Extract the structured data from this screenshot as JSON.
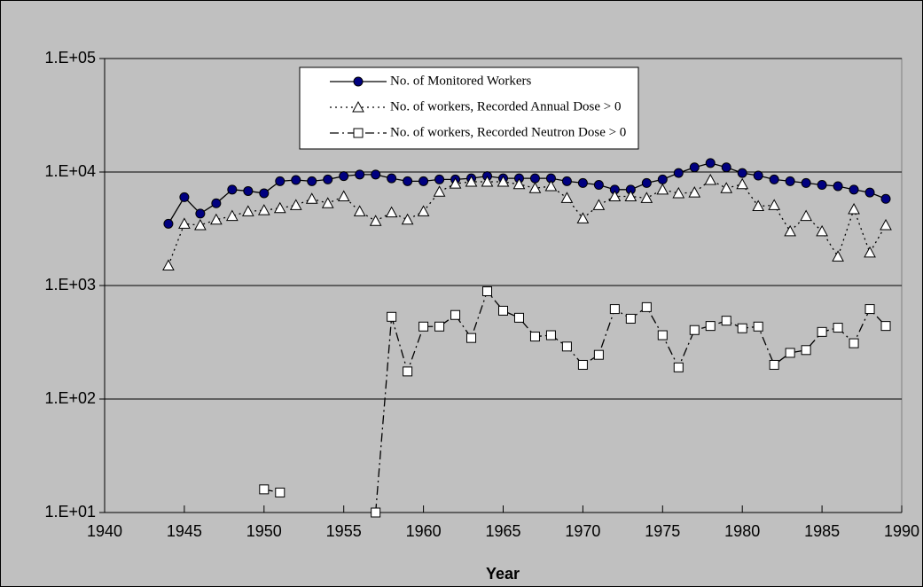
{
  "chart_data": {
    "type": "line",
    "x_label": "Year",
    "log_scale": true,
    "grid": true,
    "xlim": [
      1940,
      1990
    ],
    "xticks": [
      1940,
      1945,
      1950,
      1955,
      1960,
      1965,
      1970,
      1975,
      1980,
      1985,
      1990
    ],
    "ylim": [
      10,
      100000
    ],
    "yticks": [
      {
        "value": 10,
        "label": "1.E+01"
      },
      {
        "value": 100,
        "label": "1.E+02"
      },
      {
        "value": 1000,
        "label": "1.E+03"
      },
      {
        "value": 10000,
        "label": "1.E+04"
      },
      {
        "value": 100000,
        "label": "1.E+05"
      }
    ],
    "x": [
      1944,
      1945,
      1946,
      1947,
      1948,
      1949,
      1950,
      1951,
      1952,
      1953,
      1954,
      1955,
      1956,
      1957,
      1958,
      1959,
      1960,
      1961,
      1962,
      1963,
      1964,
      1965,
      1966,
      1967,
      1968,
      1969,
      1970,
      1971,
      1972,
      1973,
      1974,
      1975,
      1976,
      1977,
      1978,
      1979,
      1980,
      1981,
      1982,
      1983,
      1984,
      1985,
      1986,
      1987,
      1988,
      1989
    ],
    "series": [
      {
        "name": "No. of Monitored Workers",
        "color": "#000080",
        "marker": "circle",
        "line_style": "solid",
        "values": [
          3500,
          6000,
          4300,
          5300,
          7000,
          6800,
          6500,
          8300,
          8500,
          8300,
          8600,
          9200,
          9500,
          9500,
          8800,
          8300,
          8300,
          8600,
          8600,
          8800,
          9200,
          8800,
          8800,
          8800,
          8800,
          8300,
          8000,
          7700,
          7000,
          7000,
          8000,
          8600,
          9800,
          11000,
          12000,
          11000,
          9800,
          9300,
          8600,
          8300,
          8000,
          7700,
          7500,
          7000,
          6600,
          5800
        ]
      },
      {
        "name": "No. of workers, Recorded Annual Dose > 0",
        "color": "#ffffff",
        "marker": "triangle",
        "line_style": "dotted",
        "values": [
          1500,
          3500,
          3400,
          3800,
          4100,
          4500,
          4600,
          4800,
          5100,
          5800,
          5300,
          6100,
          4500,
          3700,
          4400,
          3800,
          4500,
          6700,
          7900,
          8200,
          8200,
          8200,
          7800,
          7200,
          7500,
          5900,
          3900,
          5100,
          6100,
          6100,
          5900,
          7000,
          6500,
          6600,
          8500,
          7200,
          7800,
          5000,
          5100,
          3000,
          4100,
          3000,
          1800,
          4700,
          1950,
          3400
        ]
      },
      {
        "name": "No. of workers, Recorded Neutron Dose > 0",
        "color": "#ffffff",
        "marker": "square",
        "line_style": "dash-dot",
        "values": [
          null,
          null,
          null,
          null,
          null,
          null,
          16,
          15,
          null,
          null,
          null,
          null,
          null,
          10,
          530,
          175,
          435,
          435,
          550,
          345,
          890,
          600,
          520,
          355,
          365,
          290,
          200,
          245,
          620,
          510,
          645,
          365,
          190,
          405,
          440,
          490,
          420,
          435,
          200,
          255,
          270,
          390,
          425,
          310,
          620,
          440
        ]
      }
    ]
  }
}
